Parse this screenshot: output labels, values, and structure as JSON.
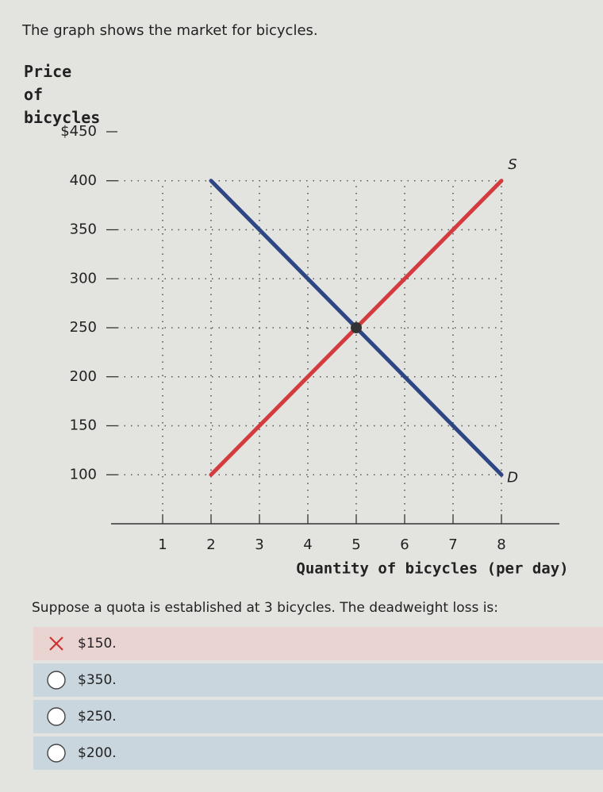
{
  "prompt": "The graph shows the market for bicycles.",
  "chart_data": {
    "type": "line",
    "y_label": "Price of bicycles",
    "x_label": "Quantity of bicycles (per day)",
    "xlim": [
      0,
      9
    ],
    "xticks": [
      1,
      2,
      3,
      4,
      5,
      6,
      7,
      8
    ],
    "ylim": [
      50,
      450
    ],
    "yticks": [
      100,
      150,
      200,
      250,
      300,
      350,
      400,
      {
        "value": 450,
        "label": "$450"
      }
    ],
    "grid": true,
    "series": [
      {
        "name": "S",
        "color": "#d43b3f",
        "x": [
          2,
          8
        ],
        "values": [
          100,
          400
        ]
      },
      {
        "name": "D",
        "color": "#2f4684",
        "x": [
          2,
          8
        ],
        "values": [
          400,
          100
        ]
      }
    ],
    "equilibrium": {
      "x": 5,
      "y": 250
    }
  },
  "question": "Suppose a quota is established at 3 bicycles. The deadweight loss is:",
  "options": [
    {
      "label": "$150.",
      "marked_wrong": true
    },
    {
      "label": "$350.",
      "marked_wrong": false
    },
    {
      "label": "$250.",
      "marked_wrong": false
    },
    {
      "label": "$200.",
      "marked_wrong": false
    }
  ]
}
